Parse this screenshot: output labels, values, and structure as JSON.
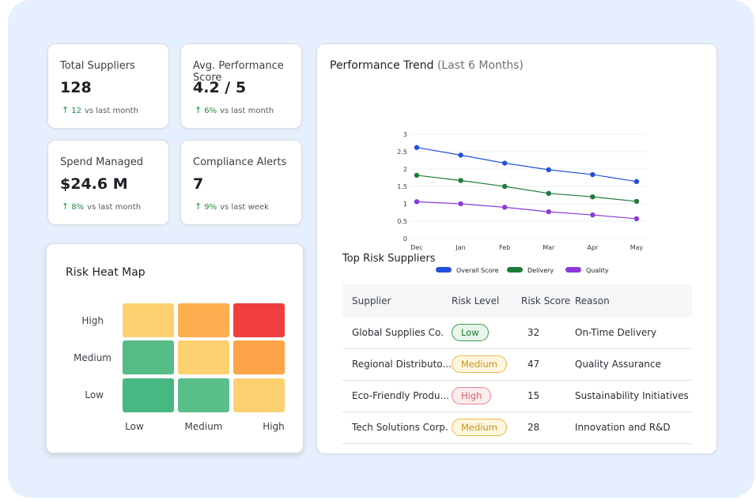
{
  "kpis": [
    {
      "title": "Total Suppliers",
      "value": "128",
      "delta": "12",
      "delta_text": "vs last month"
    },
    {
      "title": "Avg. Performance Score",
      "value": "4.2 / 5",
      "delta": "6%",
      "delta_text": "vs last month"
    },
    {
      "title": "Spend Managed",
      "value": "$24.6 M",
      "delta": "8%",
      "delta_text": "vs last month"
    },
    {
      "title": "Compliance Alerts",
      "value": "7",
      "delta": "9%",
      "delta_text": "vs last week"
    }
  ],
  "heatmap": {
    "title": "Risk Heat Map",
    "rows": [
      "High",
      "Medium",
      "Low"
    ],
    "cols": [
      "Low",
      "Medium",
      "High"
    ],
    "cells": [
      [
        "#fdd070",
        "#fdae4e",
        "#f03e3e"
      ],
      [
        "#56bc87",
        "#fdd070",
        "#fda448"
      ],
      [
        "#48b882",
        "#58bf88",
        "#fdd070"
      ]
    ]
  },
  "trend": {
    "title": "Performance Trend",
    "subtitle": "(Last 6 Months)"
  },
  "chart_data": {
    "type": "line",
    "x": [
      "Dec",
      "Jan",
      "Feb",
      "Mar",
      "Apr",
      "May"
    ],
    "yticks": [
      "0",
      "0.5",
      "1",
      "1.5",
      "2",
      "2.5",
      "3"
    ],
    "ylim": [
      0,
      3
    ],
    "series": [
      {
        "name": "Overall Score",
        "color": "#2450d8",
        "values": [
          2.62,
          2.4,
          2.17,
          1.98,
          1.84,
          1.64
        ]
      },
      {
        "name": "Delivery",
        "color": "#1e7b3a",
        "values": [
          1.82,
          1.67,
          1.5,
          1.3,
          1.2,
          1.07
        ]
      },
      {
        "name": "Quality",
        "color": "#8a3ad8",
        "values": [
          1.06,
          1.0,
          0.9,
          0.77,
          0.68,
          0.57
        ]
      }
    ],
    "legend_position": "bottom",
    "grid": true
  },
  "risk_suppliers": {
    "title": "Top Risk Suppliers",
    "headers": [
      "Supplier",
      "Risk Level",
      "Risk Score",
      "Reason"
    ],
    "rows": [
      {
        "supplier": "Global Supplies Co.",
        "level": "Low",
        "level_class": "low",
        "score": "32",
        "reason": "On-Time Delivery"
      },
      {
        "supplier": "Regional Distributo...",
        "level": "Medium",
        "level_class": "medium",
        "score": "47",
        "reason": "Quality Assurance"
      },
      {
        "supplier": "Eco-Friendly Produ...",
        "level": "High",
        "level_class": "high",
        "score": "15",
        "reason": "Sustainability Initiatives"
      },
      {
        "supplier": "Tech Solutions Corp.",
        "level": "Medium",
        "level_class": "medium",
        "score": "28",
        "reason": "Innovation and R&D"
      }
    ]
  }
}
